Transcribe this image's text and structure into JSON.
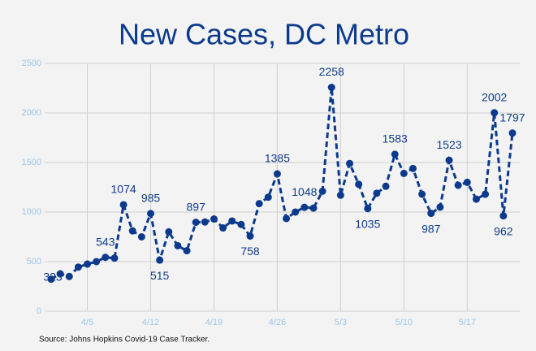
{
  "chart_data": {
    "type": "line",
    "title": "New Cases, DC Metro",
    "source": "Source: Johns Hopkins Covid-19 Case Tracker.",
    "categories": [
      null,
      null,
      null,
      null,
      "4/5",
      null,
      null,
      null,
      null,
      null,
      null,
      "4/12",
      null,
      null,
      null,
      null,
      null,
      null,
      "4/19",
      null,
      null,
      null,
      null,
      null,
      null,
      "4/26",
      null,
      null,
      null,
      null,
      null,
      null,
      "5/3",
      null,
      null,
      null,
      null,
      null,
      null,
      "5/10",
      null,
      null,
      null,
      null,
      null,
      null,
      "5/17",
      null,
      null,
      null,
      null,
      null
    ],
    "series": [
      {
        "name": "New Cases",
        "color": "#0b3a8c",
        "values": [
          323,
          377,
          350,
          445,
          475,
          500,
          543,
          535,
          1074,
          810,
          750,
          985,
          515,
          800,
          660,
          610,
          897,
          900,
          930,
          840,
          910,
          875,
          758,
          1085,
          1150,
          1385,
          935,
          1000,
          1048,
          1040,
          1210,
          2258,
          1170,
          1490,
          1280,
          1035,
          1190,
          1260,
          1583,
          1390,
          1440,
          1180,
          987,
          1050,
          1523,
          1270,
          1300,
          1130,
          1180,
          2002,
          962,
          1797
        ],
        "value_labels": [
          "323",
          null,
          null,
          null,
          null,
          null,
          "543",
          null,
          "1074",
          null,
          null,
          "985",
          "515",
          null,
          null,
          null,
          "897",
          null,
          null,
          null,
          null,
          null,
          "758",
          null,
          null,
          "1385",
          null,
          null,
          "1048",
          null,
          null,
          "2258",
          null,
          null,
          null,
          "1035",
          null,
          null,
          "1583",
          null,
          null,
          null,
          "987",
          null,
          "1523",
          null,
          null,
          null,
          null,
          "2002",
          "962",
          "1797"
        ]
      }
    ],
    "ylim": [
      0,
      2500
    ],
    "yticks": [
      0,
      500,
      1000,
      1500,
      2000,
      2500
    ],
    "grid": true
  }
}
